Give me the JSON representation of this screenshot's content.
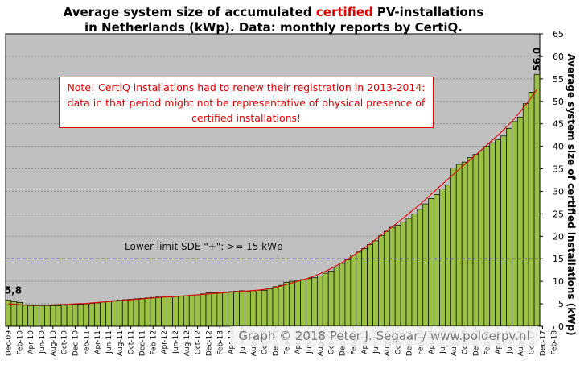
{
  "chart_data": {
    "type": "bar",
    "title_parts": [
      "Average system size of accumulated ",
      "certified",
      " PV-installations"
    ],
    "title_line2": "in Netherlands (kWp). Data: monthly reports by CertiQ.",
    "ylabel": "Average system size of certified installations (kWp)",
    "ylim": [
      0,
      65
    ],
    "yticks": [
      0,
      5,
      10,
      15,
      20,
      25,
      30,
      35,
      40,
      45,
      50,
      55,
      60,
      65
    ],
    "x_start": {
      "year": 2009,
      "month": 12
    },
    "xtick_labels": [
      "Dec-09",
      "Feb-10",
      "Apr-10",
      "Jun-10",
      "Aug-10",
      "Oct-10",
      "Dec-10",
      "Feb-11",
      "Apr-11",
      "Jun-11",
      "Aug-11",
      "Oct-11",
      "Dec-11",
      "Feb-12",
      "Apr-12",
      "Jun-12",
      "Aug-12",
      "Oct-12",
      "Dec-12",
      "Feb-13",
      "Apr-13",
      "Jun-13",
      "Aug-13",
      "Oct-13",
      "Dec-13",
      "Feb-14",
      "Apr-14",
      "Jun-14",
      "Aug-14",
      "Oct-14",
      "Dec-14",
      "Feb-15",
      "Apr-15",
      "Jun-15",
      "Aug-15",
      "Oct-15",
      "Dec-15",
      "Feb-16",
      "Apr-16",
      "Jun-16",
      "Aug-16",
      "Oct-16",
      "Dec-16",
      "Feb-17",
      "Apr-17",
      "Jun-17",
      "Aug-17",
      "Oct-17",
      "Dec-17",
      "Feb-18"
    ],
    "values": [
      5.8,
      5.5,
      5.3,
      4.7,
      4.6,
      4.6,
      4.6,
      4.6,
      4.6,
      4.6,
      4.7,
      4.8,
      4.9,
      4.9,
      5.0,
      5.1,
      5.2,
      5.4,
      5.5,
      5.7,
      5.8,
      5.9,
      6.0,
      6.1,
      6.2,
      6.3,
      6.4,
      6.5,
      6.5,
      6.6,
      6.6,
      6.7,
      6.8,
      6.9,
      7.0,
      7.2,
      7.4,
      7.5,
      7.5,
      7.6,
      7.7,
      7.8,
      7.9,
      7.8,
      7.9,
      8.0,
      8.0,
      8.3,
      8.8,
      9.1,
      9.8,
      10.0,
      10.2,
      10.4,
      10.6,
      10.8,
      11.2,
      11.8,
      12.3,
      13.2,
      14.0,
      14.8,
      15.8,
      16.5,
      17.3,
      18.2,
      19.0,
      20.1,
      21.1,
      22.0,
      22.5,
      23.2,
      24.0,
      25.0,
      26.0,
      27.2,
      28.4,
      29.3,
      30.5,
      31.4,
      35.2,
      36.0,
      36.5,
      37.5,
      38.2,
      39.0,
      40.0,
      40.8,
      41.5,
      42.3,
      44.0,
      45.5,
      46.5,
      49.5,
      52.0,
      56.0
    ],
    "trend_values": [
      5.0,
      4.9,
      4.8,
      4.7,
      4.7,
      4.7,
      4.7,
      4.7,
      4.75,
      4.8,
      4.85,
      4.9,
      5.0,
      5.05,
      5.1,
      5.2,
      5.3,
      5.4,
      5.5,
      5.6,
      5.7,
      5.8,
      5.9,
      6.0,
      6.1,
      6.2,
      6.3,
      6.4,
      6.5,
      6.55,
      6.6,
      6.7,
      6.8,
      6.9,
      7.0,
      7.1,
      7.2,
      7.3,
      7.4,
      7.5,
      7.6,
      7.7,
      7.8,
      7.85,
      7.95,
      8.05,
      8.2,
      8.4,
      8.65,
      8.95,
      9.3,
      9.65,
      10.0,
      10.35,
      10.75,
      11.2,
      11.7,
      12.25,
      12.85,
      13.5,
      14.2,
      14.95,
      15.75,
      16.6,
      17.45,
      18.35,
      19.3,
      20.25,
      21.2,
      22.15,
      23.1,
      24.1,
      25.1,
      26.1,
      27.15,
      28.25,
      29.35,
      30.5,
      31.6,
      32.7,
      33.8,
      34.9,
      36.0,
      37.05,
      38.1,
      39.2,
      40.3,
      41.4,
      42.5,
      43.7,
      44.9,
      46.3,
      47.7,
      49.3,
      50.9,
      52.7
    ],
    "first_value_label": "5,8",
    "last_value_label": "56,0",
    "reference_line": {
      "y": 15,
      "label": "Lower limit  SDE \"+\":    >= 15 kWp",
      "color": "#4a32d6"
    },
    "grid": true,
    "colors": {
      "plot_bg": "#c0c0c0",
      "bar_fill": "#9ac045",
      "bar_edge": "#000000",
      "trend": "#e00000",
      "title_highlight": "#e00000"
    }
  },
  "note": "Note! CertiQ installations had to renew their registration in 2013-2014: data in that period might not be representative of physical presence of certified installations!",
  "credit": "Graph © 2018 Peter J. Segaar / www.polderpv.nl"
}
